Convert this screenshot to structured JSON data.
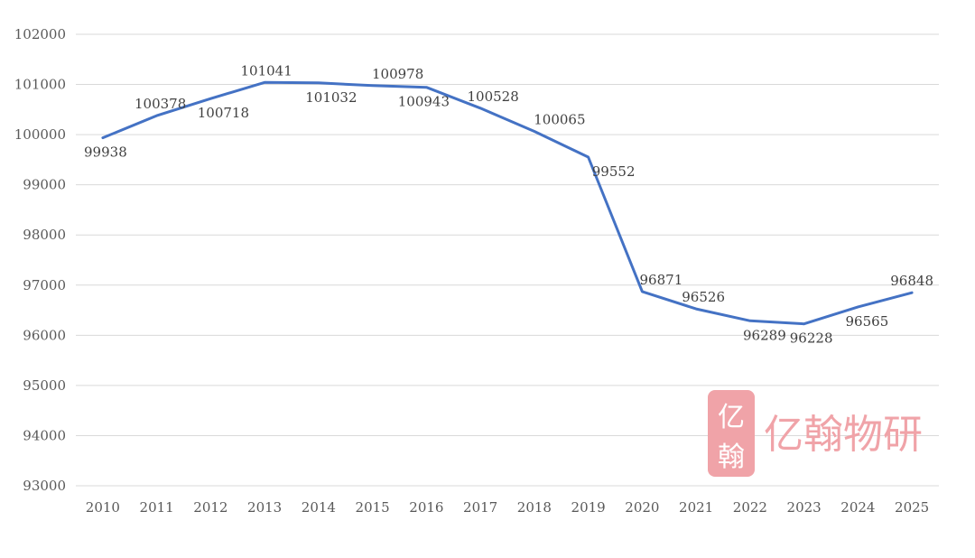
{
  "chart_data": {
    "type": "line",
    "title": "",
    "xlabel": "",
    "ylabel": "",
    "categories": [
      "2010",
      "2011",
      "2012",
      "2013",
      "2014",
      "2015",
      "2016",
      "2017",
      "2018",
      "2019",
      "2020",
      "2021",
      "2022",
      "2023",
      "2024",
      "2025"
    ],
    "series": [
      {
        "values": [
          99938,
          100378,
          100718,
          101041,
          101032,
          100978,
          100943,
          100528,
          100065,
          99552,
          96871,
          96526,
          96289,
          96228,
          96565,
          96848
        ],
        "color": "#4472c4"
      }
    ],
    "data_labels": [
      "99938",
      "100378",
      "100718",
      "101041",
      "101032",
      "100978",
      "100943",
      "100528",
      "100065",
      "99552",
      "96871",
      "96526",
      "96289",
      "96228",
      "96565",
      "96848"
    ],
    "yticks": [
      "102000",
      "101000",
      "100000",
      "99000",
      "98000",
      "97000",
      "96000",
      "95000",
      "94000",
      "93000"
    ],
    "ylim": [
      93000,
      102000
    ],
    "grid": true,
    "legend": "none"
  },
  "watermark": {
    "text": "亿翰物研",
    "seal_top": "亿",
    "seal_bottom": "翰",
    "color": "#f0a3a8"
  }
}
